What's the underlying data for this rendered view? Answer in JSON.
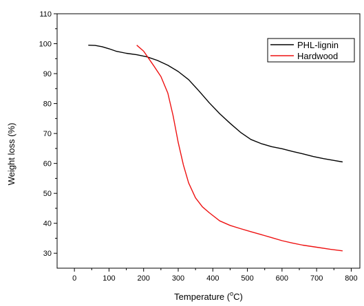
{
  "chart_data": {
    "type": "line",
    "xlabel": "Temperature (",
    "xlabel_sup": "o",
    "xlabel_unit": "C)",
    "ylabel": "Weight loss (%)",
    "xlim": [
      -50,
      825
    ],
    "ylim": [
      25,
      110
    ],
    "xticks": [
      0,
      100,
      200,
      300,
      400,
      500,
      600,
      700,
      800
    ],
    "yticks": [
      30,
      40,
      50,
      60,
      70,
      80,
      90,
      100,
      110
    ],
    "grid": false,
    "legend_position": "top-right",
    "series": [
      {
        "name": "PHL-lignin",
        "color": "#000000",
        "x": [
          40,
          60,
          80,
          100,
          120,
          150,
          180,
          210,
          240,
          270,
          300,
          330,
          360,
          390,
          420,
          450,
          480,
          510,
          540,
          570,
          600,
          630,
          660,
          690,
          720,
          750,
          775
        ],
        "y": [
          99.5,
          99.4,
          99.0,
          98.3,
          97.5,
          96.8,
          96.3,
          95.6,
          94.4,
          92.8,
          90.7,
          88.0,
          84.2,
          80.2,
          76.6,
          73.4,
          70.4,
          68.0,
          66.6,
          65.6,
          64.9,
          64.0,
          63.2,
          62.3,
          61.6,
          61.0,
          60.5
        ]
      },
      {
        "name": "Hardwood",
        "color": "#ee1111",
        "x": [
          180,
          200,
          215,
          230,
          250,
          270,
          285,
          300,
          315,
          330,
          350,
          370,
          390,
          420,
          450,
          480,
          510,
          540,
          570,
          600,
          630,
          660,
          700,
          740,
          775
        ],
        "y": [
          99.5,
          97.5,
          95.0,
          92.5,
          89.0,
          83.5,
          76.0,
          67.0,
          59.5,
          53.5,
          48.5,
          45.5,
          43.5,
          40.8,
          39.3,
          38.2,
          37.2,
          36.2,
          35.2,
          34.2,
          33.4,
          32.7,
          32.0,
          31.3,
          30.8
        ]
      }
    ]
  }
}
